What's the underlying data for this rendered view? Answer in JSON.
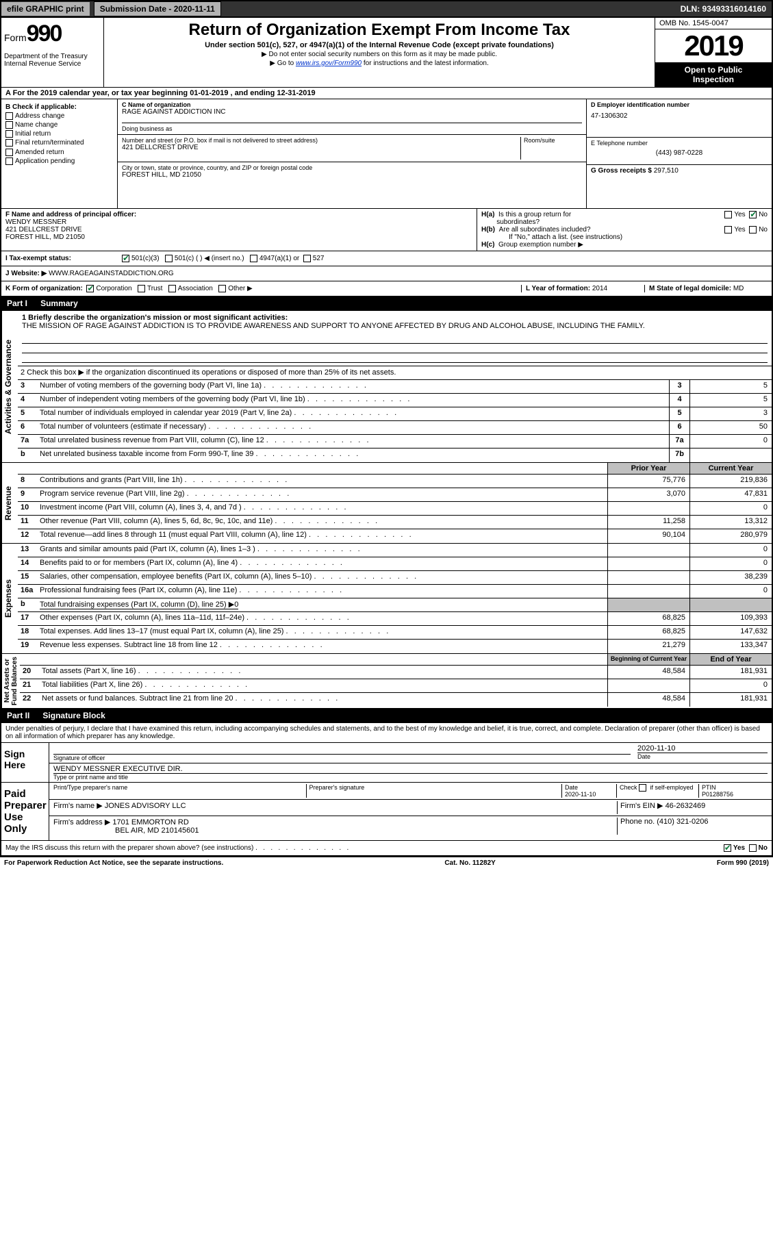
{
  "topbar": {
    "efile": "efile GRAPHIC print",
    "submission_label": "Submission Date - 2020-11-11",
    "dln": "DLN: 93493316014160"
  },
  "header": {
    "form_word": "Form",
    "form_num": "990",
    "dept": "Department of the Treasury\nInternal Revenue Service",
    "title": "Return of Organization Exempt From Income Tax",
    "subtitle": "Under section 501(c), 527, or 4947(a)(1) of the Internal Revenue Code (except private foundations)",
    "note1": "▶ Do not enter social security numbers on this form as it may be made public.",
    "note2_pre": "▶ Go to ",
    "note2_link": "www.irs.gov/Form990",
    "note2_post": " for instructions and the latest information.",
    "omb": "OMB No. 1545-0047",
    "year": "2019",
    "open": "Open to Public\nInspection"
  },
  "period": "A For the 2019 calendar year, or tax year beginning 01-01-2019    , and ending 12-31-2019",
  "checkB_label": "B Check if applicable:",
  "checkB": [
    "Address change",
    "Name change",
    "Initial return",
    "Final return/terminated",
    "Amended return",
    "Application pending"
  ],
  "blockC": {
    "name_lbl": "C Name of organization",
    "name": "RAGE AGAINST ADDICTION INC",
    "dba_lbl": "Doing business as",
    "dba": "",
    "addr_lbl": "Number and street (or P.O. box if mail is not delivered to street address)",
    "room_lbl": "Room/suite",
    "addr": "421 DELLCREST DRIVE",
    "city_lbl": "City or town, state or province, country, and ZIP or foreign postal code",
    "city": "FOREST HILL, MD  21050"
  },
  "blockD": {
    "lbl": "D Employer identification number",
    "val": "47-1306302"
  },
  "blockE": {
    "lbl": "E Telephone number",
    "val": "(443) 987-0228"
  },
  "blockG": {
    "lbl": "G Gross receipts $",
    "val": "297,510"
  },
  "blockF": {
    "lbl": "F  Name and address of principal officer:",
    "name": "WENDY MESSNER",
    "addr1": "421 DELLCREST DRIVE",
    "addr2": "FOREST HILL, MD  21050"
  },
  "blockH": {
    "a_lbl": "H(a)  Is this a group return for subordinates?",
    "b_lbl": "H(b)  Are all subordinates included?",
    "c_lbl": "H(c)  Group exemption number ▶",
    "yes": "Yes",
    "no": "No",
    "attach": "If \"No,\" attach a list. (see instructions)"
  },
  "taxexempt": {
    "lbl": "I   Tax-exempt status:",
    "opt1": "501(c)(3)",
    "opt2": "501(c) (  ) ◀ (insert no.)",
    "opt3": "4947(a)(1) or",
    "opt4": "527"
  },
  "website": {
    "lbl": "J   Website: ▶",
    "val": "WWW.RAGEAGAINSTADDICTION.ORG"
  },
  "blockK": {
    "lbl": "K Form of organization:",
    "opts": [
      "Corporation",
      "Trust",
      "Association",
      "Other ▶"
    ]
  },
  "blockL": {
    "lbl": "L Year of formation:",
    "val": "2014"
  },
  "blockM": {
    "lbl": "M State of legal domicile:",
    "val": "MD"
  },
  "part1": {
    "num": "Part I",
    "title": "Summary"
  },
  "mission": {
    "lbl": "1   Briefly describe the organization's mission or most significant activities:",
    "txt": "THE MISSION OF RAGE AGAINST ADDICTION IS TO PROVIDE AWARENESS AND SUPPORT TO ANYONE AFFECTED BY DRUG AND ALCOHOL ABUSE, INCLUDING THE FAMILY."
  },
  "line2": "2   Check this box ▶       if the organization discontinued its operations or disposed of more than 25% of its net assets.",
  "side_labels": {
    "act_gov": "Activities & Governance",
    "revenue": "Revenue",
    "expenses": "Expenses",
    "net": "Net Assets or\nFund Balances"
  },
  "gov_lines": [
    {
      "n": "3",
      "t": "Number of voting members of the governing body (Part VI, line 1a)",
      "box": "3",
      "v": "5"
    },
    {
      "n": "4",
      "t": "Number of independent voting members of the governing body (Part VI, line 1b)",
      "box": "4",
      "v": "5"
    },
    {
      "n": "5",
      "t": "Total number of individuals employed in calendar year 2019 (Part V, line 2a)",
      "box": "5",
      "v": "3"
    },
    {
      "n": "6",
      "t": "Total number of volunteers (estimate if necessary)",
      "box": "6",
      "v": "50"
    },
    {
      "n": "7a",
      "t": "Total unrelated business revenue from Part VIII, column (C), line 12",
      "box": "7a",
      "v": "0"
    },
    {
      "n": "b",
      "t": "Net unrelated business taxable income from Form 990-T, line 39",
      "box": "7b",
      "v": ""
    }
  ],
  "col_hdrs": {
    "prior": "Prior Year",
    "current": "Current Year"
  },
  "rev_lines": [
    {
      "n": "8",
      "t": "Contributions and grants (Part VIII, line 1h)",
      "p": "75,776",
      "c": "219,836"
    },
    {
      "n": "9",
      "t": "Program service revenue (Part VIII, line 2g)",
      "p": "3,070",
      "c": "47,831"
    },
    {
      "n": "10",
      "t": "Investment income (Part VIII, column (A), lines 3, 4, and 7d )",
      "p": "",
      "c": "0"
    },
    {
      "n": "11",
      "t": "Other revenue (Part VIII, column (A), lines 5, 6d, 8c, 9c, 10c, and 11e)",
      "p": "11,258",
      "c": "13,312"
    },
    {
      "n": "12",
      "t": "Total revenue—add lines 8 through 11 (must equal Part VIII, column (A), line 12)",
      "p": "90,104",
      "c": "280,979"
    }
  ],
  "exp_lines": [
    {
      "n": "13",
      "t": "Grants and similar amounts paid (Part IX, column (A), lines 1–3 )",
      "p": "",
      "c": "0"
    },
    {
      "n": "14",
      "t": "Benefits paid to or for members (Part IX, column (A), line 4)",
      "p": "",
      "c": "0"
    },
    {
      "n": "15",
      "t": "Salaries, other compensation, employee benefits (Part IX, column (A), lines 5–10)",
      "p": "",
      "c": "38,239"
    },
    {
      "n": "16a",
      "t": "Professional fundraising fees (Part IX, column (A), line 11e)",
      "p": "",
      "c": "0"
    },
    {
      "n": "b",
      "t": "Total fundraising expenses (Part IX, column (D), line 25) ▶0",
      "shaded": true
    },
    {
      "n": "17",
      "t": "Other expenses (Part IX, column (A), lines 11a–11d, 11f–24e)",
      "p": "68,825",
      "c": "109,393"
    },
    {
      "n": "18",
      "t": "Total expenses. Add lines 13–17 (must equal Part IX, column (A), line 25)",
      "p": "68,825",
      "c": "147,632"
    },
    {
      "n": "19",
      "t": "Revenue less expenses. Subtract line 18 from line 12",
      "p": "21,279",
      "c": "133,347"
    }
  ],
  "net_hdrs": {
    "begin": "Beginning of Current Year",
    "end": "End of Year"
  },
  "net_lines": [
    {
      "n": "20",
      "t": "Total assets (Part X, line 16)",
      "p": "48,584",
      "c": "181,931"
    },
    {
      "n": "21",
      "t": "Total liabilities (Part X, line 26)",
      "p": "",
      "c": "0"
    },
    {
      "n": "22",
      "t": "Net assets or fund balances. Subtract line 21 from line 20",
      "p": "48,584",
      "c": "181,931"
    }
  ],
  "part2": {
    "num": "Part II",
    "title": "Signature Block"
  },
  "penalty": "Under penalties of perjury, I declare that I have examined this return, including accompanying schedules and statements, and to the best of my knowledge and belief, it is true, correct, and complete. Declaration of preparer (other than officer) is based on all information of which preparer has any knowledge.",
  "sign": {
    "here": "Sign\nHere",
    "sig_lbl": "Signature of officer",
    "date_lbl": "Date",
    "date": "2020-11-10",
    "name": "WENDY MESSNER  EXECUTIVE DIR.",
    "type_lbl": "Type or print name and title"
  },
  "preparer": {
    "side": "Paid\nPreparer\nUse Only",
    "print_lbl": "Print/Type preparer's name",
    "sig_lbl": "Preparer's signature",
    "date_lbl": "Date",
    "date": "2020-11-10",
    "check_lbl": "Check        if self-employed",
    "ptin_lbl": "PTIN",
    "ptin": "P01288756",
    "firm_lbl": "Firm's name    ▶",
    "firm": "JONES ADVISORY LLC",
    "ein_lbl": "Firm's EIN ▶",
    "ein": "46-2632469",
    "addr_lbl": "Firm's address ▶",
    "addr1": "1701 EMMORTON RD",
    "addr2": "BEL AIR, MD  210145601",
    "phone_lbl": "Phone no.",
    "phone": "(410) 321-0206"
  },
  "discuss": "May the IRS discuss this return with the preparer shown above? (see instructions)",
  "footer": {
    "left": "For Paperwork Reduction Act Notice, see the separate instructions.",
    "mid": "Cat. No. 11282Y",
    "right": "Form 990 (2019)"
  }
}
